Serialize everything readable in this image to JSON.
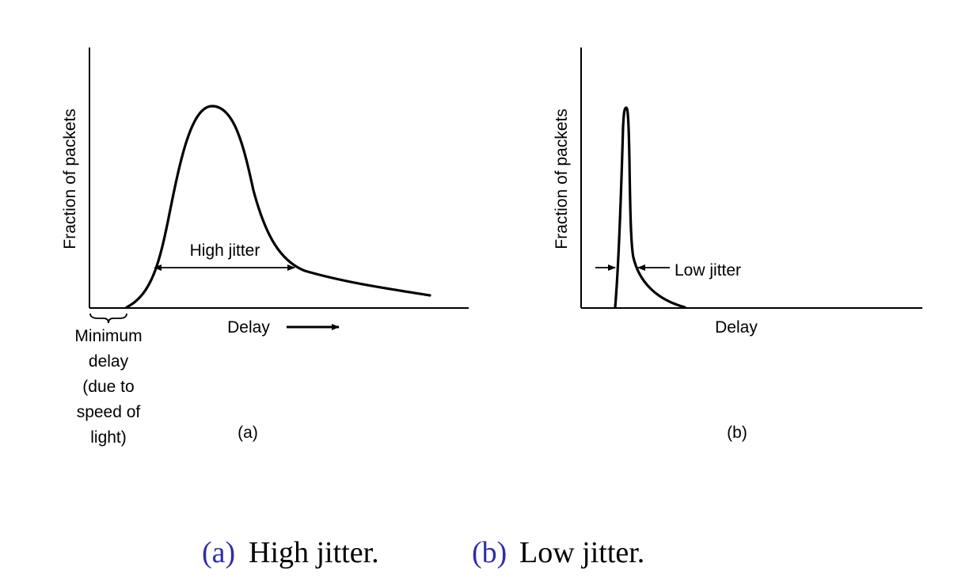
{
  "chart_data": [
    {
      "type": "line",
      "panel_label": "(a)",
      "xlabel": "Delay",
      "ylabel": "Fraction of packets",
      "annotations": {
        "jitter": "High jitter",
        "minimum_delay_lines": [
          "Minimum",
          "delay",
          "(due to",
          "speed of",
          "light)"
        ]
      },
      "grid": false
    },
    {
      "type": "line",
      "panel_label": "(b)",
      "xlabel": "Delay",
      "ylabel": "Fraction of packets",
      "annotations": {
        "jitter": "Low jitter"
      },
      "grid": false
    }
  ],
  "caption": {
    "a_tag": "(a)",
    "a_text": "High jitter.",
    "b_tag": "(b)",
    "b_text": "Low jitter."
  },
  "colors": {
    "caption_tag": "#2e2ea8",
    "ink": "#000000"
  }
}
